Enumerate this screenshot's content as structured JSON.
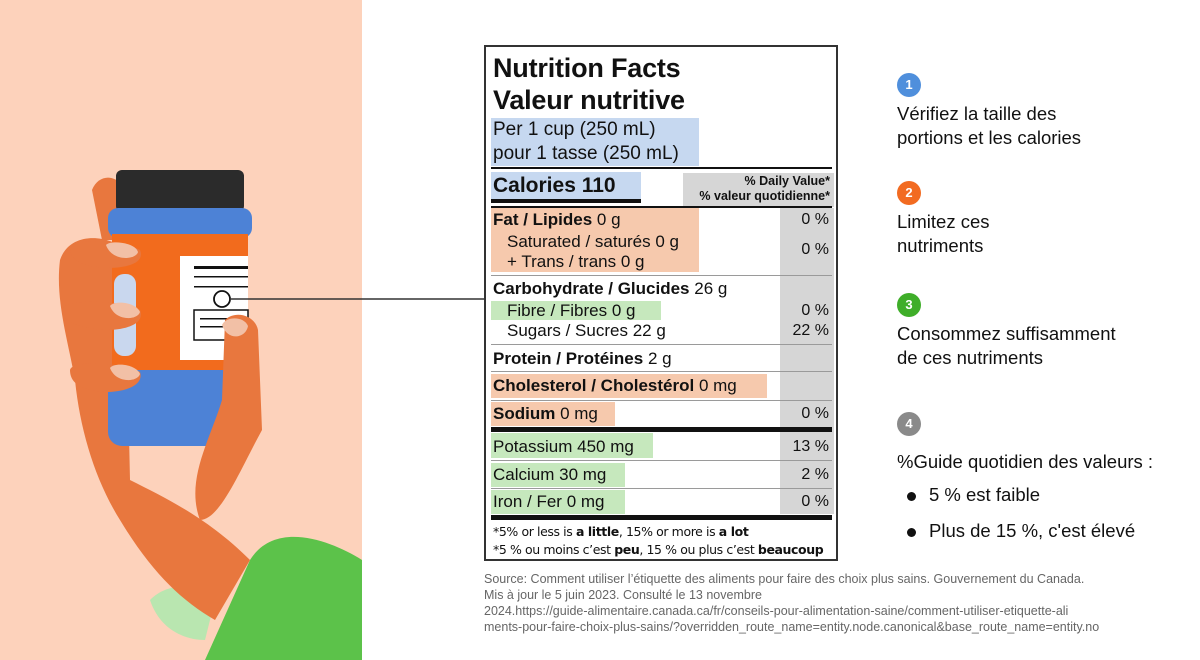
{
  "colors": {
    "background_left": "#fdd2bb",
    "skin": "#e8773e",
    "sleeve": "#5cc24a",
    "bottle_blue": "#4d82d6",
    "bottle_orange": "#f26b1d",
    "highlight_blue": "#c6d8f0",
    "highlight_orange": "#f6c9ad",
    "highlight_green": "#c6e8bd",
    "step1": "#4f8fdc",
    "step2": "#f26b21",
    "step3": "#3fae29",
    "step4": "#8a8a8a"
  },
  "label": {
    "title_en": "Nutrition Facts",
    "title_fr": "Valeur nutritive",
    "serving_en": "Per 1 cup (250 mL)",
    "serving_fr": "pour 1 tasse (250 mL)",
    "calories": "Calories 110",
    "dv_header_en": "% Daily Value*",
    "dv_header_fr": "% valeur quotidienne*",
    "fat": {
      "name": "Fat / Lipides",
      "amount": "0 g",
      "pct": "0 %"
    },
    "saturated": {
      "name": "Saturated / saturés",
      "amount": "0 g"
    },
    "trans": {
      "name": "+ Trans / trans",
      "amount": "0 g"
    },
    "sat_trans_pct": "0 %",
    "carb": {
      "name": "Carbohydrate / Glucides",
      "amount": "26 g"
    },
    "fibre": {
      "name": "Fibre / Fibres",
      "amount": "0 g",
      "pct": "0 %"
    },
    "sugars": {
      "name": "Sugars / Sucres",
      "amount": "22 g",
      "pct": "22 %"
    },
    "protein": {
      "name": "Protein / Protéines",
      "amount": "2 g"
    },
    "cholesterol": {
      "name": "Cholesterol / Cholestérol",
      "amount": "0 mg"
    },
    "sodium": {
      "name": "Sodium",
      "amount": "0 mg",
      "pct": "0 %"
    },
    "potassium": {
      "name": "Potassium",
      "amount": "450 mg",
      "pct": "13 %"
    },
    "calcium": {
      "name": "Calcium",
      "amount": "30 mg",
      "pct": "2 %"
    },
    "iron": {
      "name": "Iron / Fer",
      "amount": "0 mg",
      "pct": "0 %"
    },
    "footnote_en": {
      "a": "*5% or less is ",
      "b": "a little",
      "c": ", 15% or more is ",
      "d": "a lot"
    },
    "footnote_fr": {
      "a": "*5 % ou moins c’est ",
      "b": "peu",
      "c": ", 15 % ou plus c’est ",
      "d": "beaucoup"
    }
  },
  "steps": [
    {
      "number": "1",
      "lines": [
        "Vérifiez la taille des",
        "portions et les calories"
      ]
    },
    {
      "number": "2",
      "lines": [
        "Limitez ces",
        "nutriments"
      ]
    },
    {
      "number": "3",
      "lines": [
        "Consommez suffisamment",
        "de ces nutriments"
      ]
    },
    {
      "number": "4",
      "lines": [
        "%Guide quotidien des valeurs :"
      ]
    }
  ],
  "bullets": [
    "5 % est faible",
    "Plus de 15 %, c'est élevé"
  ],
  "source_lines": [
    "Source: Comment utiliser l’étiquette des aliments pour faire des choix plus sains. Gouvernement du Canada.",
    "Mis à jour le 5 juin 2023. Consulté le 13 novembre",
    "2024.https://guide-alimentaire.canada.ca/fr/conseils-pour-alimentation-saine/comment-utiliser-etiquette-ali",
    "ments-pour-faire-choix-plus-sains/?overridden_route_name=entity.node.canonical&base_route_name=entity.no"
  ]
}
